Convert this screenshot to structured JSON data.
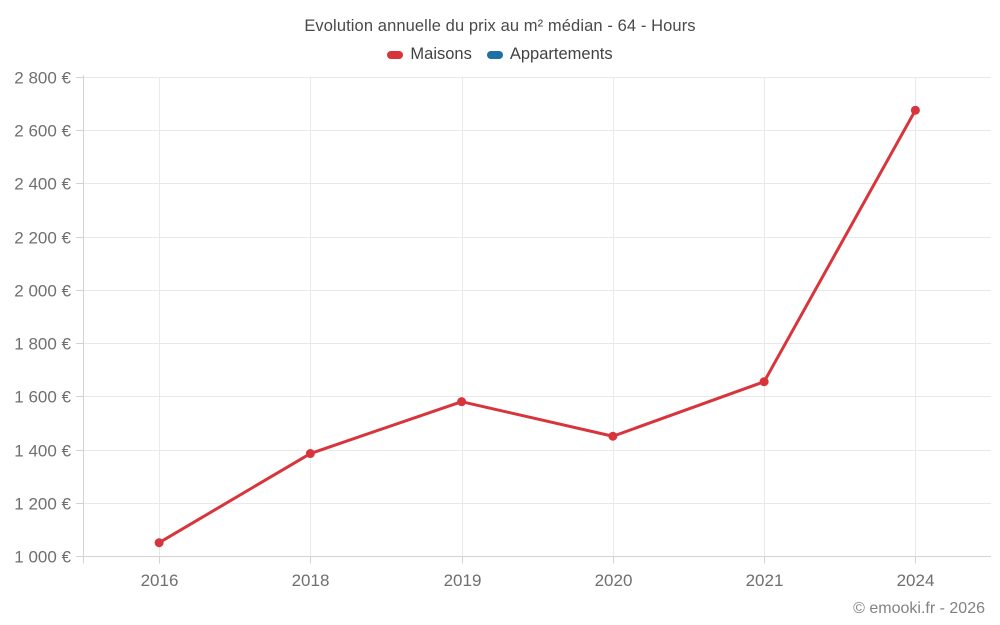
{
  "title": "Evolution annuelle du prix au m² médian - 64 - Hours",
  "legend": {
    "items": [
      {
        "label": "Maisons",
        "color": "#d8343b"
      },
      {
        "label": "Appartements",
        "color": "#1d6fa5"
      }
    ]
  },
  "watermark": "© emooki.fr - 2026",
  "chart_data": {
    "type": "line",
    "title": "Evolution annuelle du prix au m² médian - 64 - Hours",
    "categories": [
      "2016",
      "2018",
      "2019",
      "2020",
      "2021",
      "2024"
    ],
    "series": [
      {
        "name": "Maisons",
        "color": "#d8343b",
        "values": [
          1050,
          1385,
          1580,
          1450,
          1655,
          2675
        ]
      },
      {
        "name": "Appartements",
        "color": "#1d6fa5",
        "values": null
      }
    ],
    "xlabel": "",
    "ylabel": "",
    "ylim": [
      1000,
      2800
    ],
    "y_tick_step": 200,
    "y_tick_labels": [
      "1 000 €",
      "1 200 €",
      "1 400 €",
      "1 600 €",
      "1 800 €",
      "2 000 €",
      "2 200 €",
      "2 400 €",
      "2 600 €",
      "2 800 €"
    ],
    "grid": true,
    "legend_position": "top",
    "marker": "circle",
    "colors": {
      "grid": "#e9e9e9",
      "axis": "#d3d3d3",
      "tick_label": "#6f6f6f"
    }
  }
}
